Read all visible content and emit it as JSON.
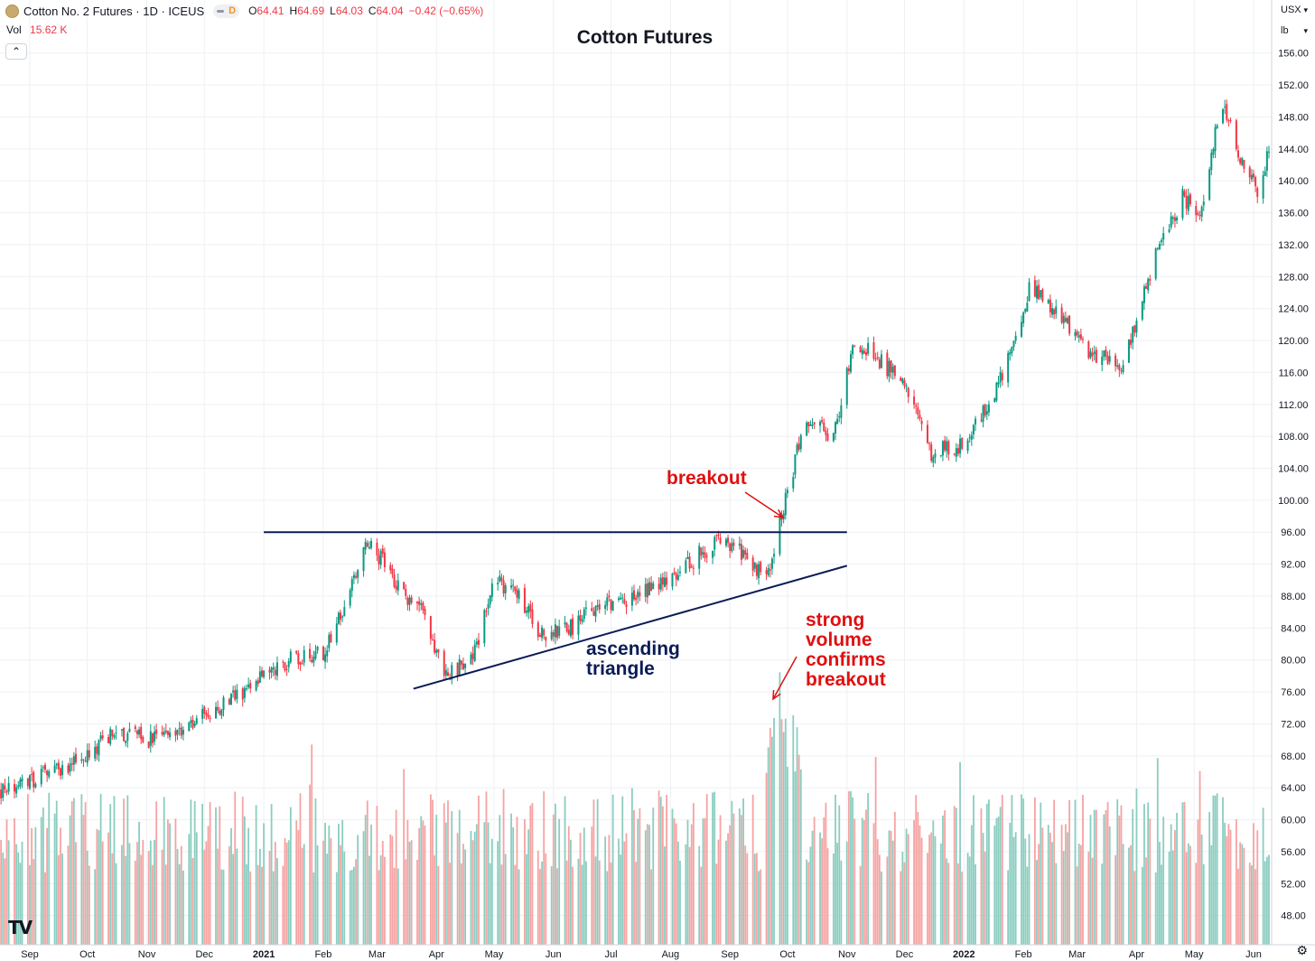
{
  "header": {
    "symbol_title": "Cotton No. 2 Futures · 1D · ICEUS",
    "interval_badge": "D",
    "open_label": "O",
    "open": "64.41",
    "high_label": "H",
    "high": "64.69",
    "low_label": "L",
    "low": "64.03",
    "close_label": "C",
    "close": "64.04",
    "change": "−0.42 (−0.65%)",
    "volume_label": "Vol",
    "volume": "15.62 K",
    "currency": "USX",
    "unit": "lb",
    "logo": "TV"
  },
  "chart_data": {
    "type": "candlestick",
    "title": "Cotton Futures",
    "x_axis_labels": [
      "Sep",
      "Oct",
      "Nov",
      "Dec",
      "2021",
      "Feb",
      "Mar",
      "Apr",
      "May",
      "Jun",
      "Jul",
      "Aug",
      "Sep",
      "Oct",
      "Nov",
      "Dec",
      "2022",
      "Feb",
      "Mar",
      "Apr",
      "May",
      "Jun"
    ],
    "x_label_dates": [
      "2020-09-01",
      "2020-10-01",
      "2020-11-01",
      "2020-12-01",
      "2021-01-01",
      "2021-02-01",
      "2021-03-01",
      "2021-04-01",
      "2021-05-01",
      "2021-06-01",
      "2021-07-01",
      "2021-08-01",
      "2021-09-01",
      "2021-10-01",
      "2021-11-01",
      "2021-12-01",
      "2022-01-01",
      "2022-02-01",
      "2022-03-01",
      "2022-04-01",
      "2022-05-01",
      "2022-06-01"
    ],
    "y_axis_ticks": [
      "48.00",
      "52.00",
      "56.00",
      "60.00",
      "64.00",
      "68.00",
      "72.00",
      "76.00",
      "80.00",
      "84.00",
      "88.00",
      "92.00",
      "96.00",
      "100.00",
      "104.00",
      "108.00",
      "112.00",
      "116.00",
      "120.00",
      "124.00",
      "128.00",
      "132.00",
      "136.00",
      "140.00",
      "144.00",
      "148.00",
      "152.00",
      "156.00"
    ],
    "y_range": [
      44.4,
      158.4
    ],
    "y_unit": "USX/lb",
    "grid": true,
    "price_path_dates": [
      "2020-08-15",
      "2020-09-01",
      "2020-09-15",
      "2020-10-01",
      "2020-10-15",
      "2020-11-01",
      "2020-11-15",
      "2020-12-01",
      "2020-12-15",
      "2021-01-01",
      "2021-01-15",
      "2021-02-01",
      "2021-02-12",
      "2021-02-25",
      "2021-03-15",
      "2021-03-26",
      "2021-04-05",
      "2021-04-20",
      "2021-05-01",
      "2021-05-15",
      "2021-05-25",
      "2021-06-10",
      "2021-06-25",
      "2021-07-15",
      "2021-08-01",
      "2021-08-15",
      "2021-08-25",
      "2021-09-10",
      "2021-09-20",
      "2021-09-30",
      "2021-10-10",
      "2021-10-25",
      "2021-11-05",
      "2021-11-20",
      "2021-12-01",
      "2021-12-15",
      "2022-01-01",
      "2022-01-20",
      "2022-02-05",
      "2022-02-20",
      "2022-03-10",
      "2022-03-25",
      "2022-04-10",
      "2022-04-25",
      "2022-05-05",
      "2022-05-15",
      "2022-05-25",
      "2022-06-05",
      "2022-06-10"
    ],
    "price_path_closes": [
      63.5,
      65,
      66,
      68,
      71,
      70,
      71,
      73,
      75,
      78,
      80,
      81,
      87,
      95,
      88,
      86,
      78,
      80,
      90,
      88,
      83,
      84,
      87,
      88,
      90,
      93,
      95,
      93,
      90,
      100,
      110,
      108,
      120,
      117,
      115,
      106,
      107,
      115,
      127,
      123,
      118,
      117,
      130,
      138,
      136,
      150,
      143,
      138,
      146
    ],
    "volume_bar_count": 460,
    "annotations": [
      {
        "text": "breakout",
        "target_date": "2021-09-30",
        "target_price": 96.5
      },
      {
        "text_lines": [
          "strong",
          "volume",
          "confirms",
          "breakout"
        ]
      },
      {
        "text_lines": [
          "ascending",
          "triangle"
        ]
      }
    ],
    "trendlines": [
      {
        "name": "resistance",
        "from": {
          "date": "2021-01-01",
          "price": 96.0
        },
        "to": {
          "date": "2021-11-01",
          "price": 96.0
        }
      },
      {
        "name": "ascending-support",
        "from": {
          "date": "2021-03-20",
          "price": 76.4
        },
        "to": {
          "date": "2021-11-01",
          "price": 91.8
        }
      }
    ],
    "colors": {
      "up": "#089981",
      "down": "#f23645",
      "vol_up": "#8bcdc0",
      "vol_down": "#f6a3a3",
      "trendline": "#0b1b57",
      "annotation": "#e01010",
      "grid": "#eef0f3"
    }
  }
}
